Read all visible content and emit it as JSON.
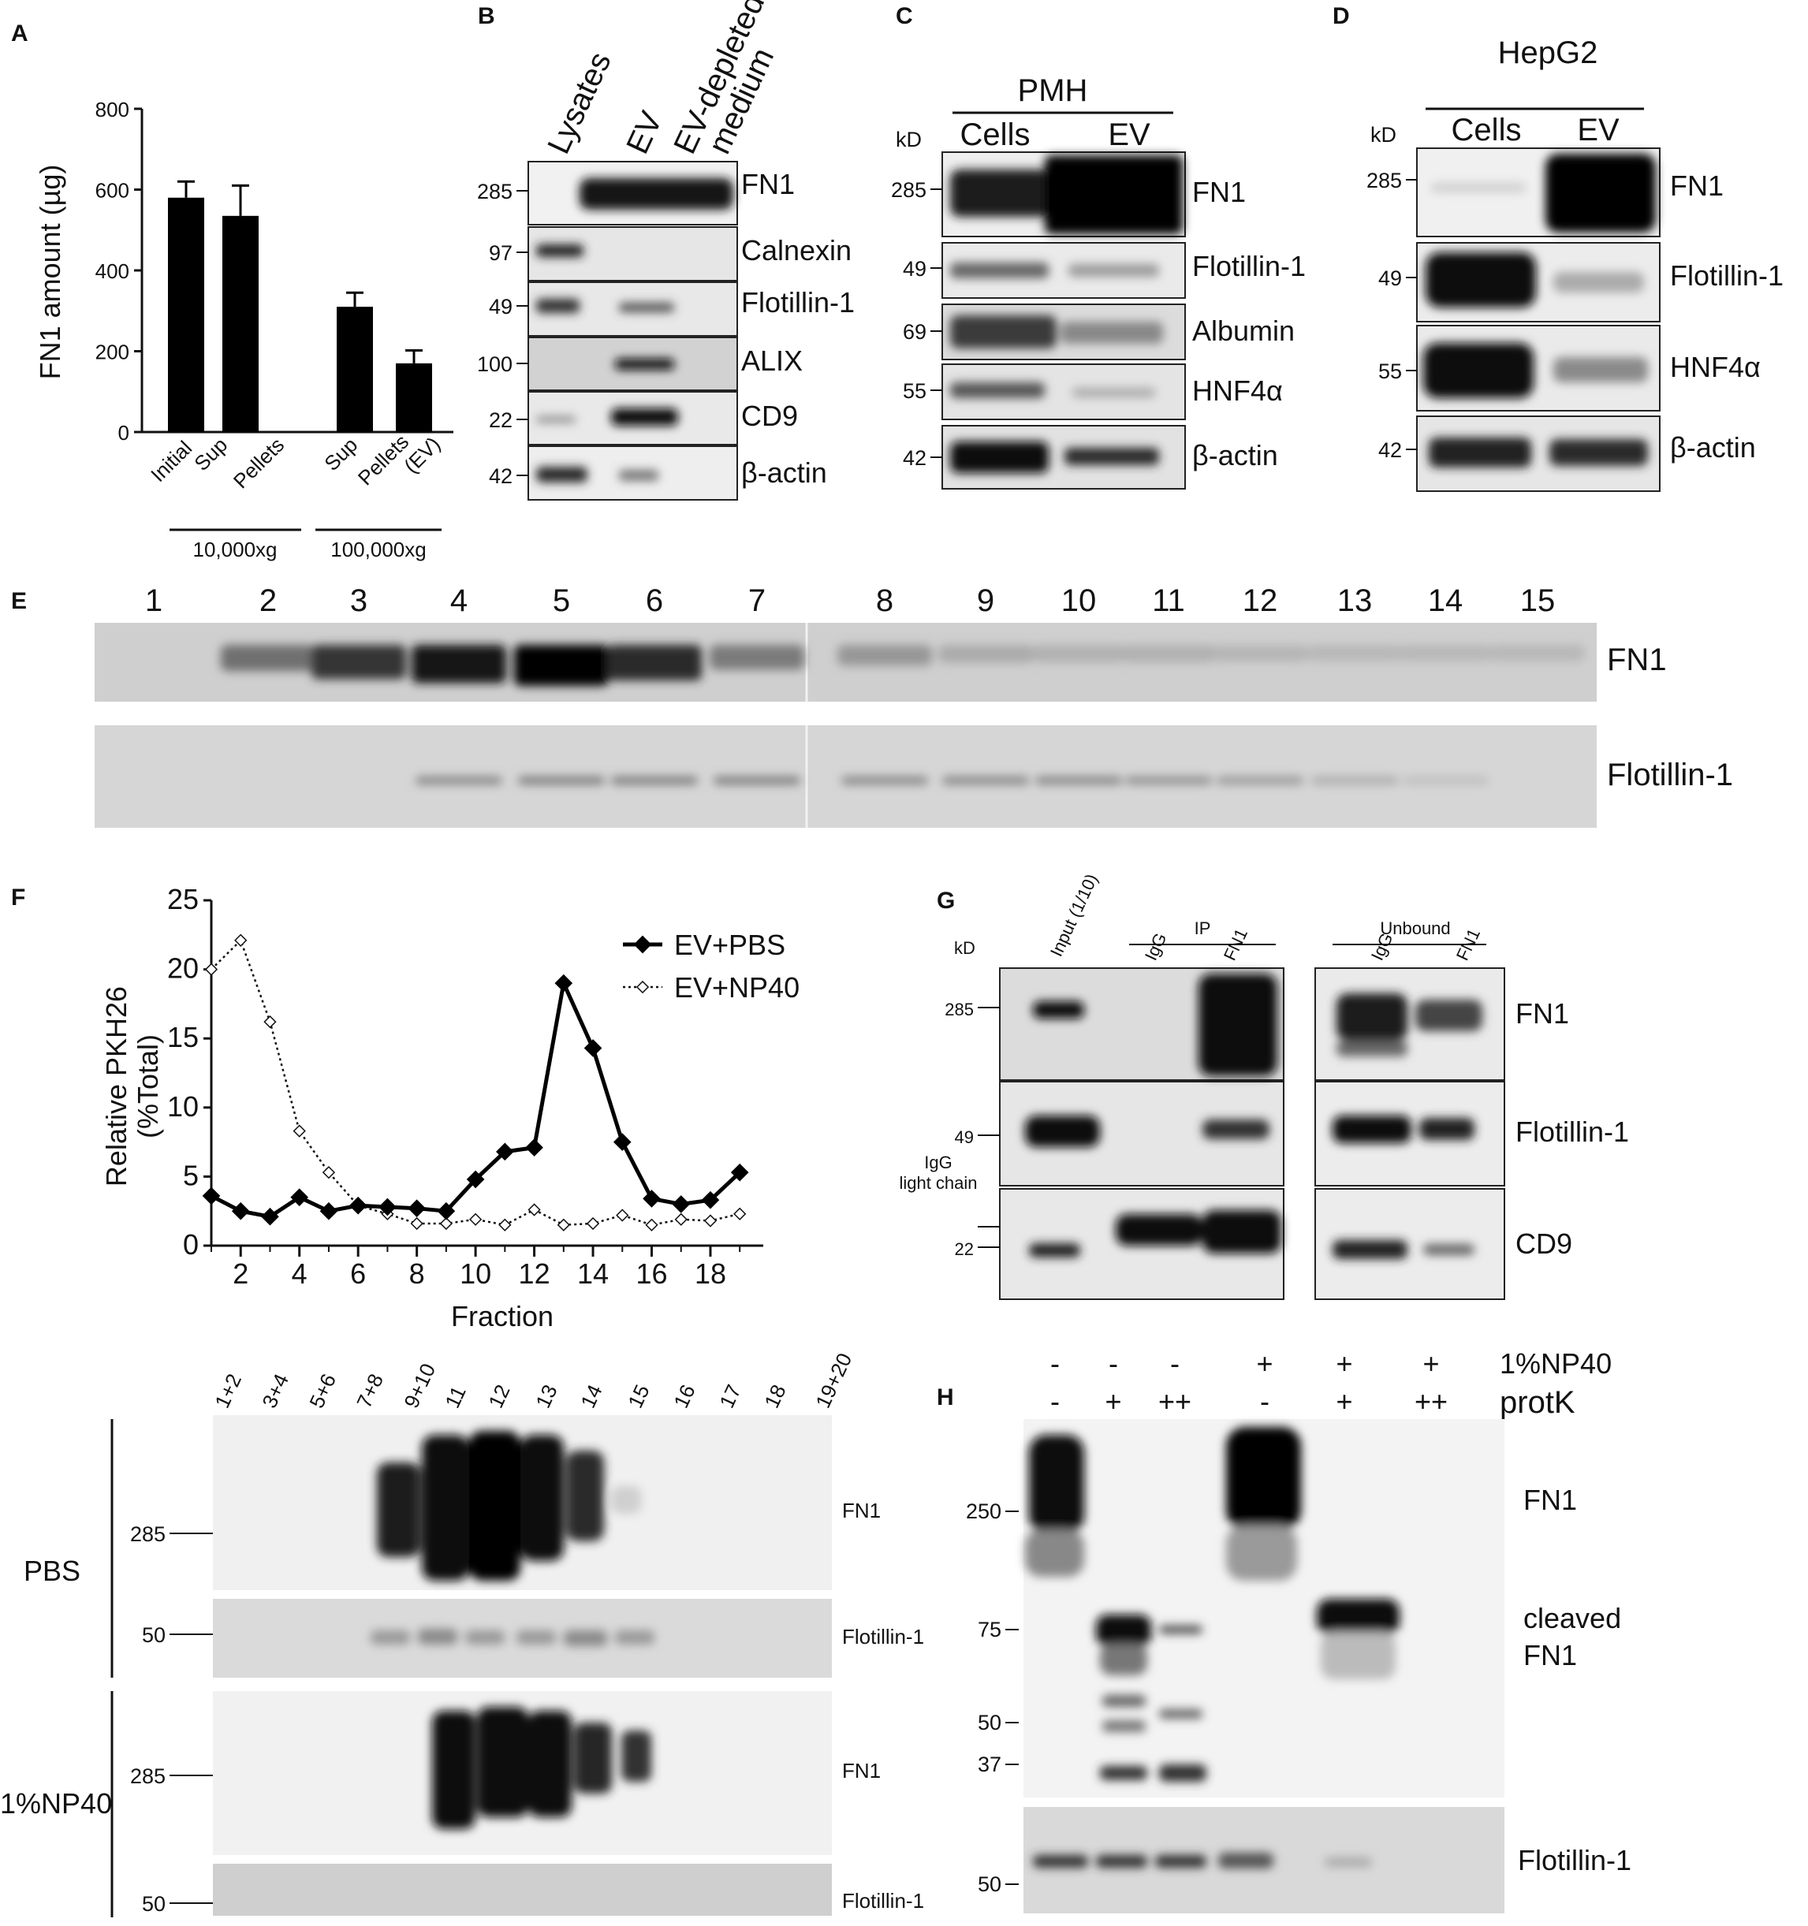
{
  "panels": {
    "a": "A",
    "b": "B",
    "c": "C",
    "d": "D",
    "e": "E",
    "f": "F",
    "g": "G",
    "h": "H"
  },
  "panelA": {
    "chart_data": {
      "type": "bar",
      "categories": [
        "Initial",
        "Sup",
        "Pellets",
        "Sup",
        "Pellets (EV)"
      ],
      "category_lines": [
        "Initial",
        "Sup",
        "Pellets",
        "Sup",
        "Pellets",
        "(EV)"
      ],
      "values": [
        580,
        535,
        0,
        310,
        170
      ],
      "errors": [
        40,
        75,
        0,
        35,
        32
      ],
      "ylabel": "FN1 amount (µg)",
      "ylim": [
        0,
        800
      ],
      "yticks": [
        "0",
        "200",
        "400",
        "600",
        "800"
      ],
      "groups": [
        "10,000xg",
        "100,000xg"
      ]
    }
  },
  "panelB": {
    "columns": [
      "Lysates",
      "EV",
      "EV-depleted",
      "medium"
    ],
    "rows": [
      {
        "kd": "285",
        "protein": "FN1"
      },
      {
        "kd": "97",
        "protein": "Calnexin"
      },
      {
        "kd": "49",
        "protein": "Flotillin-1"
      },
      {
        "kd": "100",
        "protein": "ALIX"
      },
      {
        "kd": "22",
        "protein": "CD9"
      },
      {
        "kd": "42",
        "protein": "β-actin"
      }
    ]
  },
  "panelC": {
    "group": "PMH",
    "kd_header": "kD",
    "columns": [
      "Cells",
      "EV"
    ],
    "rows": [
      {
        "kd": "285",
        "protein": "FN1"
      },
      {
        "kd": "49",
        "protein": "Flotillin-1"
      },
      {
        "kd": "69",
        "protein": "Albumin"
      },
      {
        "kd": "55",
        "protein": "HNF4α"
      },
      {
        "kd": "42",
        "protein": "β-actin"
      }
    ]
  },
  "panelD": {
    "group": "HepG2",
    "kd_header": "kD",
    "columns": [
      "Cells",
      "EV"
    ],
    "rows": [
      {
        "kd": "285",
        "protein": "FN1"
      },
      {
        "kd": "49",
        "protein": "Flotillin-1"
      },
      {
        "kd": "55",
        "protein": "HNF4α"
      },
      {
        "kd": "42",
        "protein": "β-actin"
      }
    ]
  },
  "panelE": {
    "lanes": [
      "1",
      "2",
      "3",
      "4",
      "5",
      "6",
      "7",
      "8",
      "9",
      "10",
      "11",
      "12",
      "13",
      "14",
      "15"
    ],
    "rows": [
      "FN1",
      "Flotillin-1"
    ]
  },
  "panelF": {
    "chart_data": {
      "type": "line",
      "x": [
        1,
        2,
        3,
        4,
        5,
        6,
        7,
        8,
        9,
        10,
        11,
        12,
        13,
        14,
        15,
        16,
        17,
        18,
        19
      ],
      "series": [
        {
          "name": "EV+PBS",
          "values": [
            3.6,
            2.5,
            2.1,
            3.5,
            2.5,
            2.9,
            2.8,
            2.7,
            2.5,
            4.8,
            6.8,
            7.1,
            19.0,
            14.3,
            7.5,
            3.4,
            3.0,
            3.3,
            5.3
          ]
        },
        {
          "name": "EV+NP40",
          "values": [
            20.0,
            22.1,
            16.2,
            8.3,
            5.3,
            2.9,
            2.3,
            1.6,
            1.6,
            1.9,
            1.5,
            2.6,
            1.5,
            1.6,
            2.2,
            1.5,
            1.9,
            1.8,
            2.3
          ]
        }
      ],
      "xlabel": "Fraction",
      "ylabel_lines": [
        "Relative PKH26",
        "(%Total)"
      ],
      "ylim": [
        0,
        25
      ],
      "xticks": [
        "2",
        "4",
        "6",
        "8",
        "10",
        "12",
        "14",
        "16",
        "18"
      ],
      "yticks": [
        "0",
        "5",
        "10",
        "15",
        "20",
        "25"
      ]
    }
  },
  "panelF2": {
    "lanes": [
      "1+2",
      "3+4",
      "5+6",
      "7+8",
      "9+10",
      "11",
      "12",
      "13",
      "14",
      "15",
      "16",
      "17",
      "18",
      "19+20"
    ],
    "groups": [
      "PBS",
      "1%NP40"
    ],
    "rows": [
      {
        "kd": "285",
        "protein": "FN1"
      },
      {
        "kd": "50",
        "protein": "Flotillin-1"
      },
      {
        "kd": "285",
        "protein": "FN1"
      },
      {
        "kd": "50",
        "protein": "Flotillin-1"
      }
    ]
  },
  "panelG": {
    "kd_header": "kD",
    "columns": [
      "Input (1/10)",
      "IgG",
      "FN1",
      "IgG",
      "FN1"
    ],
    "groups": [
      "IP",
      "Unbound"
    ],
    "rows": [
      {
        "kd": "285",
        "protein": "FN1"
      },
      {
        "kd": "49",
        "protein": "Flotillin-1"
      },
      {
        "kd": "22",
        "protein": "CD9"
      }
    ],
    "igg_label": [
      "IgG",
      "light chain"
    ]
  },
  "panelH": {
    "np40_label": "1%NP40",
    "protk_label": "protK",
    "np40": [
      "-",
      "-",
      "-",
      "+",
      "+",
      "+"
    ],
    "protk": [
      "-",
      "+",
      "++",
      "-",
      "+",
      "++"
    ],
    "kd": [
      "250",
      "75",
      "50",
      "37",
      "50"
    ],
    "labels": [
      "FN1",
      "cleaved",
      "FN1",
      "Flotillin-1"
    ]
  }
}
